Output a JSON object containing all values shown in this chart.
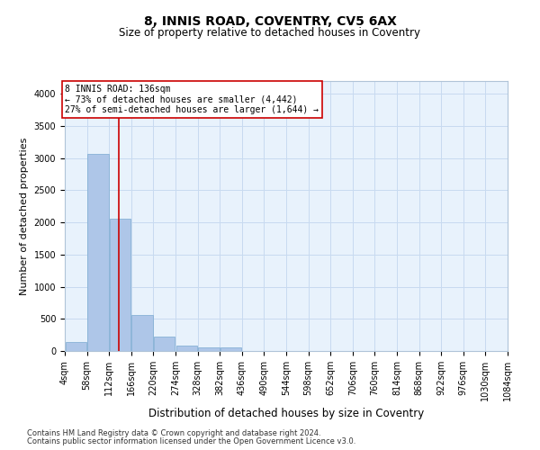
{
  "title": "8, INNIS ROAD, COVENTRY, CV5 6AX",
  "subtitle": "Size of property relative to detached houses in Coventry",
  "xlabel": "Distribution of detached houses by size in Coventry",
  "ylabel": "Number of detached properties",
  "bar_color": "#aec6e8",
  "bar_edge_color": "#7aaad0",
  "grid_color": "#c8daf0",
  "background_color": "#e8f2fc",
  "vline_x": 136,
  "vline_color": "#cc0000",
  "annotation_text": "8 INNIS ROAD: 136sqm\n← 73% of detached houses are smaller (4,442)\n27% of semi-detached houses are larger (1,644) →",
  "annotation_box_color": "#ffffff",
  "annotation_box_edge": "#cc0000",
  "bin_edges": [
    4,
    58,
    112,
    166,
    220,
    274,
    328,
    382,
    436,
    490,
    544,
    598,
    652,
    706,
    760,
    814,
    868,
    922,
    976,
    1030,
    1084
  ],
  "bin_labels": [
    "4sqm",
    "58sqm",
    "112sqm",
    "166sqm",
    "220sqm",
    "274sqm",
    "328sqm",
    "382sqm",
    "436sqm",
    "490sqm",
    "544sqm",
    "598sqm",
    "652sqm",
    "706sqm",
    "760sqm",
    "814sqm",
    "868sqm",
    "922sqm",
    "976sqm",
    "1030sqm",
    "1084sqm"
  ],
  "bar_heights": [
    140,
    3060,
    2060,
    560,
    220,
    80,
    50,
    50,
    0,
    0,
    0,
    0,
    0,
    0,
    0,
    0,
    0,
    0,
    0,
    0
  ],
  "ylim": [
    0,
    4200
  ],
  "yticks": [
    0,
    500,
    1000,
    1500,
    2000,
    2500,
    3000,
    3500,
    4000
  ],
  "title_fontsize": 10,
  "subtitle_fontsize": 8.5,
  "ylabel_fontsize": 8,
  "xlabel_fontsize": 8.5,
  "tick_fontsize": 7,
  "footnote1": "Contains HM Land Registry data © Crown copyright and database right 2024.",
  "footnote2": "Contains public sector information licensed under the Open Government Licence v3.0.",
  "footnote_fontsize": 6
}
